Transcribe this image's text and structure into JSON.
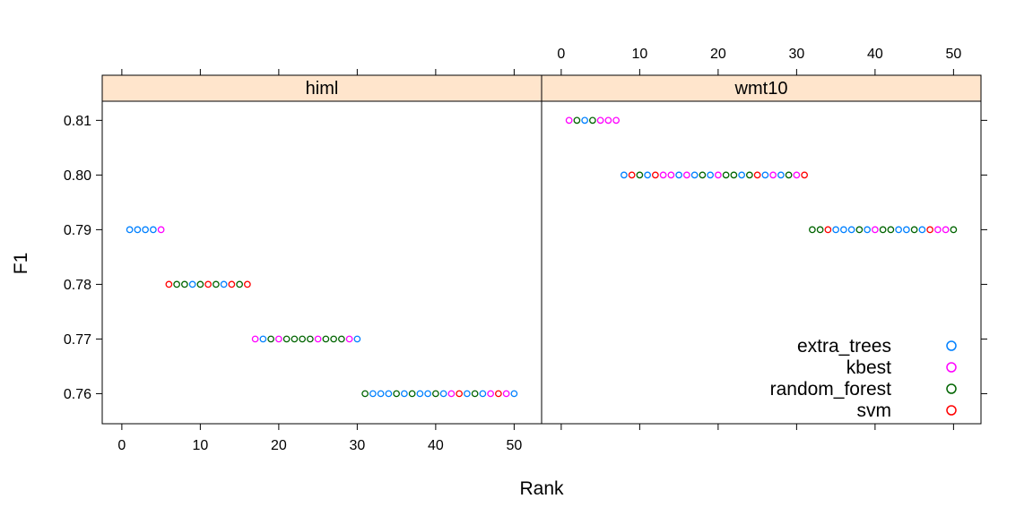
{
  "chart_data": {
    "type": "scatter",
    "xlabel": "Rank",
    "ylabel": "F1",
    "xlim": [
      -2.5,
      53.5
    ],
    "ylim": [
      0.7545,
      0.8135
    ],
    "x_ticks": [
      0,
      10,
      20,
      30,
      40,
      50
    ],
    "y_ticks": [
      0.76,
      0.77,
      0.78,
      0.79,
      0.8,
      0.81
    ],
    "y_tick_labels": [
      "0.76",
      "0.77",
      "0.78",
      "0.79",
      "0.80",
      "0.81"
    ],
    "series_colors": {
      "extra_trees": "#0080ff",
      "kbest": "#ff00ff",
      "random_forest": "#006400",
      "svm": "#ff0000"
    },
    "strip_color": "#ffe5cc",
    "legend": {
      "position": "bottom-right of panel wmt10",
      "entries": [
        "extra_trees",
        "kbest",
        "random_forest",
        "svm"
      ]
    },
    "panels": [
      {
        "name": "himl",
        "points": [
          [
            1,
            0.79,
            "extra_trees"
          ],
          [
            2,
            0.79,
            "extra_trees"
          ],
          [
            3,
            0.79,
            "extra_trees"
          ],
          [
            4,
            0.79,
            "extra_trees"
          ],
          [
            5,
            0.79,
            "kbest"
          ],
          [
            6,
            0.78,
            "svm"
          ],
          [
            7,
            0.78,
            "random_forest"
          ],
          [
            8,
            0.78,
            "random_forest"
          ],
          [
            9,
            0.78,
            "extra_trees"
          ],
          [
            10,
            0.78,
            "random_forest"
          ],
          [
            11,
            0.78,
            "svm"
          ],
          [
            12,
            0.78,
            "random_forest"
          ],
          [
            13,
            0.78,
            "extra_trees"
          ],
          [
            14,
            0.78,
            "svm"
          ],
          [
            15,
            0.78,
            "random_forest"
          ],
          [
            16,
            0.78,
            "svm"
          ],
          [
            17,
            0.77,
            "kbest"
          ],
          [
            18,
            0.77,
            "extra_trees"
          ],
          [
            19,
            0.77,
            "random_forest"
          ],
          [
            20,
            0.77,
            "kbest"
          ],
          [
            21,
            0.77,
            "random_forest"
          ],
          [
            22,
            0.77,
            "random_forest"
          ],
          [
            23,
            0.77,
            "random_forest"
          ],
          [
            24,
            0.77,
            "random_forest"
          ],
          [
            25,
            0.77,
            "kbest"
          ],
          [
            26,
            0.77,
            "random_forest"
          ],
          [
            27,
            0.77,
            "random_forest"
          ],
          [
            28,
            0.77,
            "random_forest"
          ],
          [
            29,
            0.77,
            "kbest"
          ],
          [
            30,
            0.77,
            "extra_trees"
          ],
          [
            31,
            0.76,
            "random_forest"
          ],
          [
            32,
            0.76,
            "extra_trees"
          ],
          [
            33,
            0.76,
            "extra_trees"
          ],
          [
            34,
            0.76,
            "extra_trees"
          ],
          [
            35,
            0.76,
            "random_forest"
          ],
          [
            36,
            0.76,
            "extra_trees"
          ],
          [
            37,
            0.76,
            "random_forest"
          ],
          [
            38,
            0.76,
            "extra_trees"
          ],
          [
            39,
            0.76,
            "extra_trees"
          ],
          [
            40,
            0.76,
            "random_forest"
          ],
          [
            41,
            0.76,
            "extra_trees"
          ],
          [
            42,
            0.76,
            "kbest"
          ],
          [
            43,
            0.76,
            "svm"
          ],
          [
            44,
            0.76,
            "extra_trees"
          ],
          [
            45,
            0.76,
            "random_forest"
          ],
          [
            46,
            0.76,
            "extra_trees"
          ],
          [
            47,
            0.76,
            "kbest"
          ],
          [
            48,
            0.76,
            "svm"
          ],
          [
            49,
            0.76,
            "kbest"
          ],
          [
            50,
            0.76,
            "extra_trees"
          ]
        ]
      },
      {
        "name": "wmt10",
        "points": [
          [
            1,
            0.81,
            "kbest"
          ],
          [
            2,
            0.81,
            "random_forest"
          ],
          [
            3,
            0.81,
            "extra_trees"
          ],
          [
            4,
            0.81,
            "random_forest"
          ],
          [
            5,
            0.81,
            "kbest"
          ],
          [
            6,
            0.81,
            "kbest"
          ],
          [
            7,
            0.81,
            "kbest"
          ],
          [
            8,
            0.8,
            "extra_trees"
          ],
          [
            9,
            0.8,
            "svm"
          ],
          [
            10,
            0.8,
            "random_forest"
          ],
          [
            11,
            0.8,
            "extra_trees"
          ],
          [
            12,
            0.8,
            "svm"
          ],
          [
            13,
            0.8,
            "kbest"
          ],
          [
            14,
            0.8,
            "kbest"
          ],
          [
            15,
            0.8,
            "extra_trees"
          ],
          [
            16,
            0.8,
            "kbest"
          ],
          [
            17,
            0.8,
            "extra_trees"
          ],
          [
            18,
            0.8,
            "random_forest"
          ],
          [
            19,
            0.8,
            "extra_trees"
          ],
          [
            20,
            0.8,
            "kbest"
          ],
          [
            21,
            0.8,
            "random_forest"
          ],
          [
            22,
            0.8,
            "random_forest"
          ],
          [
            23,
            0.8,
            "extra_trees"
          ],
          [
            24,
            0.8,
            "random_forest"
          ],
          [
            25,
            0.8,
            "svm"
          ],
          [
            26,
            0.8,
            "extra_trees"
          ],
          [
            27,
            0.8,
            "kbest"
          ],
          [
            28,
            0.8,
            "extra_trees"
          ],
          [
            29,
            0.8,
            "random_forest"
          ],
          [
            30,
            0.8,
            "kbest"
          ],
          [
            31,
            0.8,
            "svm"
          ],
          [
            32,
            0.79,
            "random_forest"
          ],
          [
            33,
            0.79,
            "random_forest"
          ],
          [
            34,
            0.79,
            "svm"
          ],
          [
            35,
            0.79,
            "extra_trees"
          ],
          [
            36,
            0.79,
            "extra_trees"
          ],
          [
            37,
            0.79,
            "extra_trees"
          ],
          [
            38,
            0.79,
            "random_forest"
          ],
          [
            39,
            0.79,
            "extra_trees"
          ],
          [
            40,
            0.79,
            "kbest"
          ],
          [
            41,
            0.79,
            "random_forest"
          ],
          [
            42,
            0.79,
            "random_forest"
          ],
          [
            43,
            0.79,
            "extra_trees"
          ],
          [
            44,
            0.79,
            "extra_trees"
          ],
          [
            45,
            0.79,
            "random_forest"
          ],
          [
            46,
            0.79,
            "extra_trees"
          ],
          [
            47,
            0.79,
            "svm"
          ],
          [
            48,
            0.79,
            "kbest"
          ],
          [
            49,
            0.79,
            "kbest"
          ],
          [
            50,
            0.79,
            "random_forest"
          ]
        ]
      }
    ]
  }
}
